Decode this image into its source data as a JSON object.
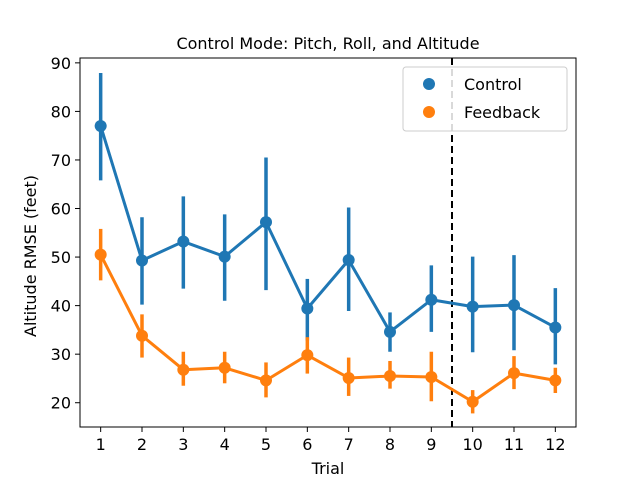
{
  "chart_data": {
    "type": "line",
    "title": "Control Mode: Pitch, Roll, and Altitude",
    "xlabel": "Trial",
    "ylabel": "Altitude RMSE (feet)",
    "categories": [
      "1",
      "2",
      "3",
      "4",
      "5",
      "6",
      "7",
      "8",
      "9",
      "10",
      "11",
      "12"
    ],
    "ylim": [
      15,
      91
    ],
    "yticks": [
      20,
      30,
      40,
      50,
      60,
      70,
      80,
      90
    ],
    "grid": false,
    "legend_position": "top-right",
    "vline_between": [
      "9",
      "10"
    ],
    "series": [
      {
        "name": "Control",
        "color": "#1f77b4",
        "values": [
          77.0,
          49.3,
          53.2,
          50.1,
          57.2,
          39.4,
          49.4,
          34.6,
          41.2,
          39.8,
          40.1,
          35.5
        ],
        "err_low": [
          65.8,
          40.2,
          43.5,
          41.0,
          43.2,
          32.8,
          38.9,
          30.5,
          34.6,
          30.4,
          30.8,
          27.9
        ],
        "err_high": [
          87.9,
          58.2,
          62.5,
          58.8,
          70.5,
          45.5,
          60.2,
          38.6,
          48.3,
          50.1,
          50.4,
          43.6
        ]
      },
      {
        "name": "Feedback",
        "color": "#ff7f0e",
        "values": [
          50.5,
          33.8,
          26.8,
          27.2,
          24.6,
          29.8,
          25.1,
          25.5,
          25.3,
          20.2,
          26.1,
          24.6
        ],
        "err_low": [
          45.2,
          29.3,
          23.5,
          24.0,
          21.1,
          26.0,
          21.4,
          22.9,
          20.3,
          17.8,
          22.8,
          22.0
        ],
        "err_high": [
          55.8,
          38.2,
          30.5,
          30.5,
          28.3,
          33.5,
          29.3,
          28.6,
          30.5,
          22.6,
          29.6,
          27.2
        ]
      }
    ]
  }
}
